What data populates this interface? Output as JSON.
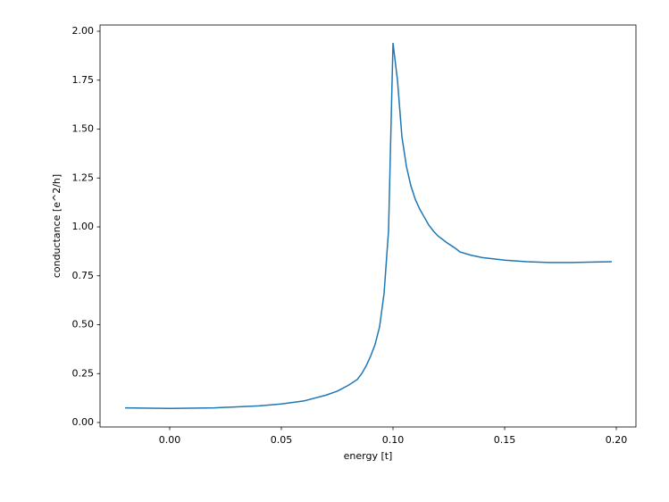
{
  "chart_data": {
    "type": "line",
    "xlabel": "energy [t]",
    "ylabel": "conductance [e^2/h]",
    "x": [
      -0.02,
      0.0,
      0.02,
      0.04,
      0.05,
      0.06,
      0.07,
      0.075,
      0.08,
      0.084,
      0.086,
      0.088,
      0.09,
      0.092,
      0.094,
      0.096,
      0.098,
      0.1,
      0.102,
      0.104,
      0.106,
      0.108,
      0.11,
      0.112,
      0.114,
      0.116,
      0.118,
      0.12,
      0.124,
      0.128,
      0.13,
      0.135,
      0.14,
      0.15,
      0.16,
      0.17,
      0.18,
      0.19,
      0.198
    ],
    "series": [
      {
        "color": "#1f77b4",
        "values": [
          0.075,
          0.072,
          0.075,
          0.085,
          0.095,
          0.11,
          0.14,
          0.16,
          0.19,
          0.22,
          0.25,
          0.29,
          0.34,
          0.4,
          0.49,
          0.66,
          0.98,
          1.94,
          1.75,
          1.46,
          1.31,
          1.21,
          1.14,
          1.09,
          1.05,
          1.01,
          0.98,
          0.955,
          0.92,
          0.89,
          0.872,
          0.855,
          0.843,
          0.83,
          0.822,
          0.818,
          0.818,
          0.82,
          0.822
        ]
      }
    ],
    "xlim": [
      -0.0312,
      0.2088
    ],
    "ylim": [
      -0.0228,
      2.032
    ],
    "xticks": [
      {
        "value": 0,
        "label": "0.00"
      },
      {
        "value": 0.05,
        "label": "0.05"
      },
      {
        "value": 0.1,
        "label": "0.10"
      },
      {
        "value": 0.15,
        "label": "0.15"
      },
      {
        "value": 0.2,
        "label": "0.20"
      }
    ],
    "yticks": [
      {
        "value": 0,
        "label": "0.00"
      },
      {
        "value": 0.25,
        "label": "0.25"
      },
      {
        "value": 0.5,
        "label": "0.50"
      },
      {
        "value": 0.75,
        "label": "0.75"
      },
      {
        "value": 1,
        "label": "1.00"
      },
      {
        "value": 1.25,
        "label": "1.25"
      },
      {
        "value": 1.5,
        "label": "1.50"
      },
      {
        "value": 1.75,
        "label": "1.75"
      },
      {
        "value": 2,
        "label": "2.00"
      }
    ],
    "grid": false
  }
}
